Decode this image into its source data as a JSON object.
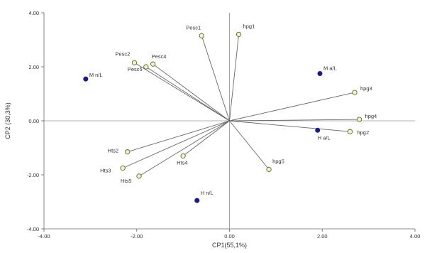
{
  "chart_data": {
    "type": "scatter",
    "xlabel": "CP1(55,1%)",
    "ylabel": "CP2 (30,3%)",
    "xlim": [
      -4,
      4
    ],
    "ylim": [
      -4,
      4
    ],
    "x_ticks": [
      "-4.00",
      "-2.00",
      "0.00",
      "2.00",
      "4.00"
    ],
    "y_ticks": [
      "4.00",
      "2.00",
      "0.00",
      "-2.00",
      "-4.00"
    ],
    "x_tick_values": [
      -4,
      -2,
      0,
      2,
      4
    ],
    "y_tick_values": [
      4,
      2,
      0,
      -2,
      -4
    ],
    "grid": false,
    "colors": {
      "vector": "#666666",
      "vector_marker_fill": "#f2f2c4",
      "vector_marker_stroke": "#556b2f",
      "observation": "#1a1a8c",
      "axis": "#666666"
    },
    "series": [
      {
        "name": "",
        "role": "variables",
        "points": [
          {
            "label": "Pesc1",
            "x": -0.6,
            "y": 3.15
          },
          {
            "label": "hpg1",
            "x": 0.2,
            "y": 3.2
          },
          {
            "label": "Pesc2",
            "x": -2.05,
            "y": 2.15
          },
          {
            "label": "Pesc4",
            "x": -1.65,
            "y": 2.1
          },
          {
            "label": "Pesc5",
            "x": -1.8,
            "y": 2.0
          },
          {
            "label": "hpg3",
            "x": 2.7,
            "y": 1.05
          },
          {
            "label": "hpg4",
            "x": 2.8,
            "y": 0.05
          },
          {
            "label": "hpg2",
            "x": 2.6,
            "y": -0.4
          },
          {
            "label": "Hts2",
            "x": -2.2,
            "y": -1.15
          },
          {
            "label": "Hts3",
            "x": -2.3,
            "y": -1.75
          },
          {
            "label": "Hts4",
            "x": -1.0,
            "y": -1.3
          },
          {
            "label": "Hts5",
            "x": -1.95,
            "y": -2.05
          },
          {
            "label": "hpg5",
            "x": 0.85,
            "y": -1.8
          }
        ]
      },
      {
        "name": "",
        "role": "observations",
        "points": [
          {
            "label": "M n/L",
            "x": -3.1,
            "y": 1.55
          },
          {
            "label": "M a/L",
            "x": 1.95,
            "y": 1.75
          },
          {
            "label": "H a/L",
            "x": 1.9,
            "y": -0.35
          },
          {
            "label": "H n/L",
            "x": -0.7,
            "y": -2.95
          }
        ]
      }
    ]
  }
}
